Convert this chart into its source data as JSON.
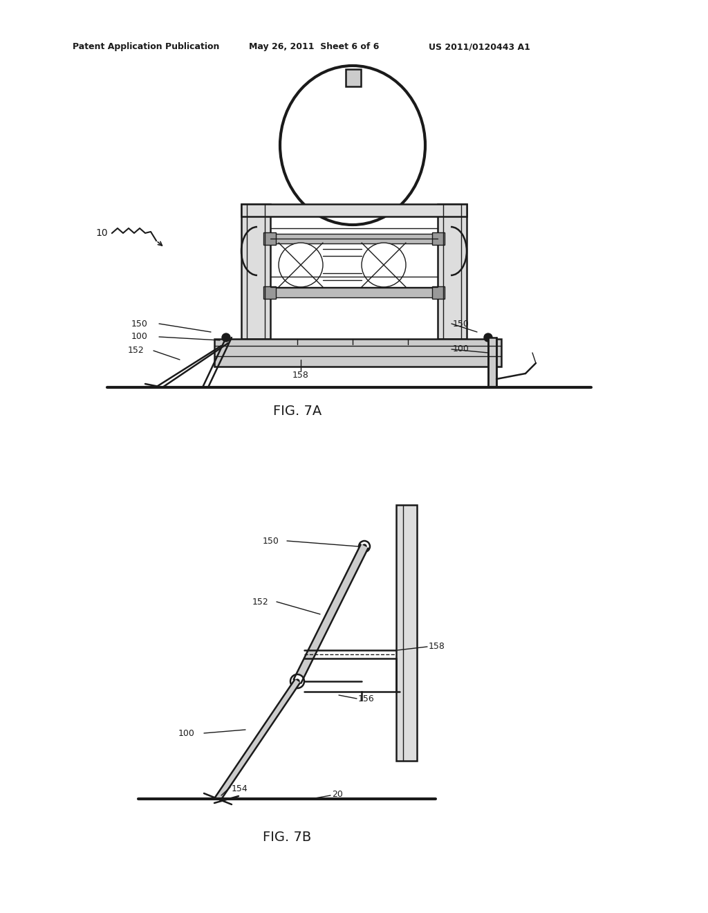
{
  "bg_color": "#ffffff",
  "line_color": "#1a1a1a",
  "header_left": "Patent Application Publication",
  "header_mid": "May 26, 2011  Sheet 6 of 6",
  "header_right": "US 2011/0120443 A1",
  "fig7a_label": "FIG. 7A",
  "fig7b_label": "FIG. 7B"
}
